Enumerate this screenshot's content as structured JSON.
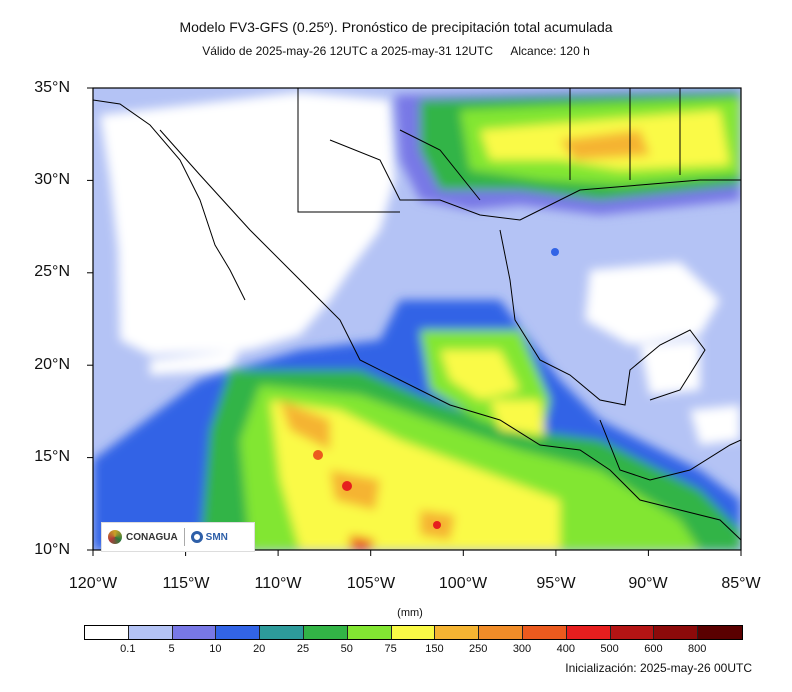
{
  "title": "Modelo FV3-GFS (0.25º). Pronóstico de precipitación total acumulada",
  "subtitle_valid": "Válido de 2025-may-26 12UTC a 2025-may-31 12UTC",
  "subtitle_range": "Alcance: 120 h",
  "lat_labels": [
    "35°N",
    "30°N",
    "25°N",
    "20°N",
    "15°N",
    "10°N"
  ],
  "lon_labels": [
    "120°W",
    "115°W",
    "110°W",
    "105°W",
    "100°W",
    "95°W",
    "90°W",
    "85°W"
  ],
  "unit": "(mm)",
  "colorbar": {
    "colors": [
      "#ffffff",
      "#b4c3f5",
      "#7878e6",
      "#3264e6",
      "#2d9b9b",
      "#32b446",
      "#82e632",
      "#fafa46",
      "#f5b432",
      "#f08c28",
      "#eb5a1e",
      "#e61e1e",
      "#b41414",
      "#8c0a0a",
      "#5a0000"
    ],
    "ticks": [
      "0.1",
      "5",
      "10",
      "20",
      "25",
      "50",
      "75",
      "150",
      "250",
      "300",
      "400",
      "500",
      "600",
      "800"
    ]
  },
  "init_text": "Inicialización: 2025-may-26 00UTC",
  "logo": {
    "org1": "CONAGUA",
    "org2": "SMN"
  }
}
